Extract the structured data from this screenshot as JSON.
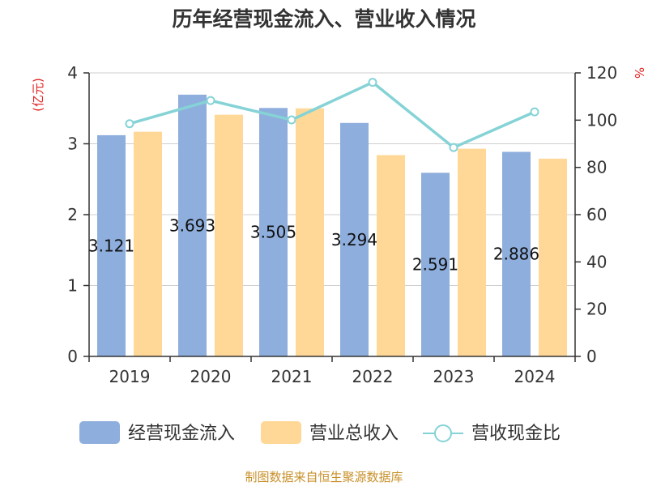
{
  "chart_data": {
    "type": "bar",
    "title": "历年经营现金流入、营业收入情况",
    "categories": [
      "2019",
      "2020",
      "2021",
      "2022",
      "2023",
      "2024"
    ],
    "y_left_unit": "(亿元)",
    "y_right_unit": "%",
    "y_left_lim": [
      0,
      4
    ],
    "y_left_ticks": [
      "0",
      "1",
      "2",
      "3",
      "4"
    ],
    "y_right_lim": [
      0,
      120
    ],
    "y_right_ticks": [
      "0",
      "20",
      "40",
      "60",
      "80",
      "100",
      "120"
    ],
    "grid": true,
    "legend_position": "bottom",
    "series": [
      {
        "name": "经营现金流入",
        "type": "bar",
        "axis": "left",
        "color": "#8eaedd",
        "values": [
          3.121,
          3.693,
          3.505,
          3.294,
          2.591,
          2.886
        ],
        "labels": [
          "3.121",
          "3.693",
          "3.505",
          "3.294",
          "2.591",
          "2.886"
        ]
      },
      {
        "name": "营业总收入",
        "type": "bar",
        "axis": "left",
        "color": "#ffd897",
        "values": [
          3.17,
          3.41,
          3.5,
          2.84,
          2.93,
          2.79
        ]
      },
      {
        "name": "营收现金比",
        "type": "line",
        "axis": "right",
        "color": "#85d3d6",
        "values": [
          98.5,
          108.3,
          100.1,
          116.0,
          88.4,
          103.5
        ]
      }
    ]
  },
  "source": "制图数据来自恒生聚源数据库"
}
